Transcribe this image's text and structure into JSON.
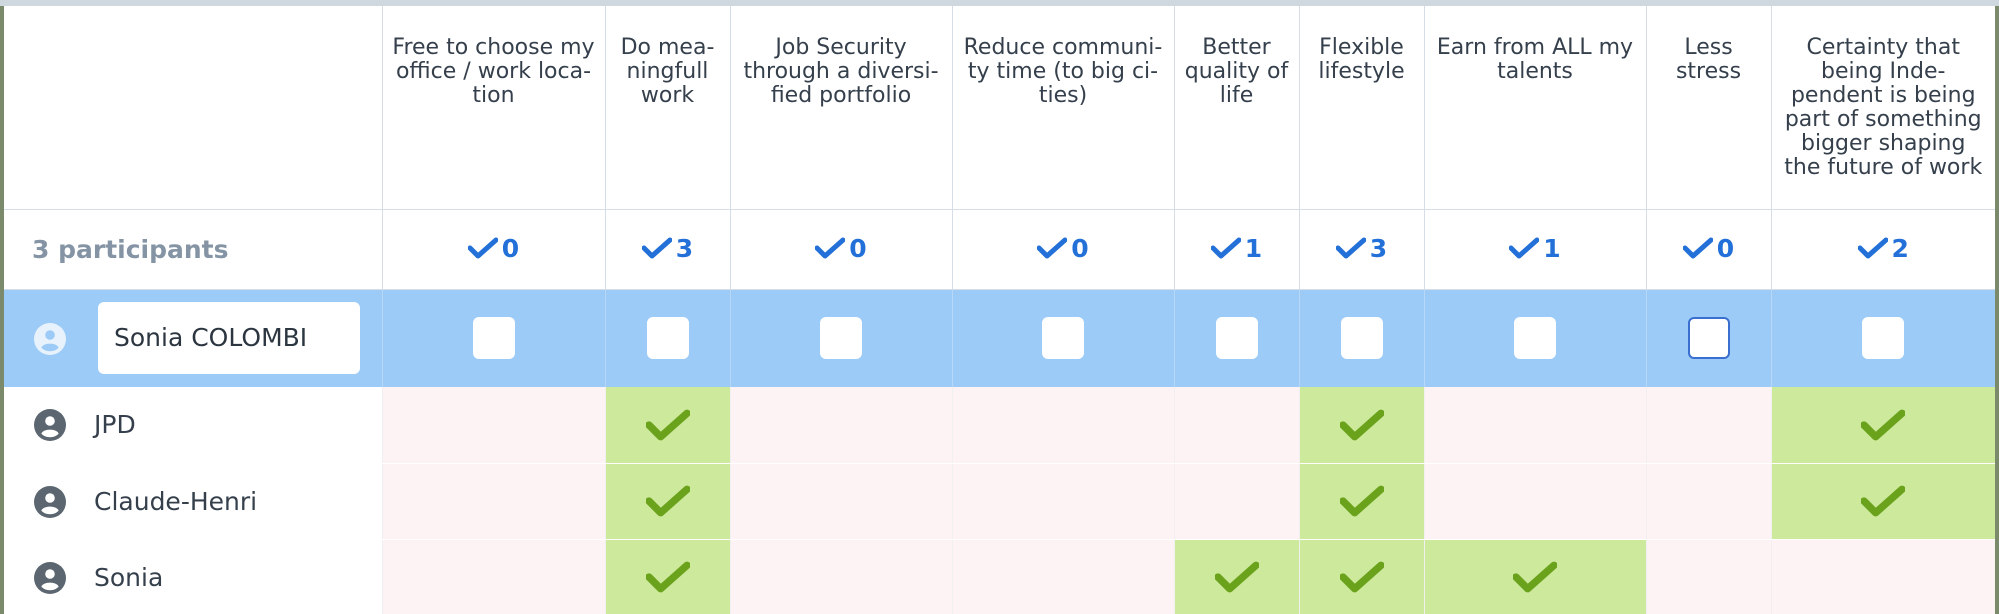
{
  "columns": [
    {
      "label": "Free to choose my office / work loca-tion",
      "count": "0"
    },
    {
      "label": "Do mea-ningfull work",
      "count": "3"
    },
    {
      "label": "Job Security through a diversi-fied portfolio",
      "count": "0"
    },
    {
      "label": "Reduce communi-ty time (to big ci-ties)",
      "count": "0"
    },
    {
      "label": "Better quality of life",
      "count": "1"
    },
    {
      "label": "Flexible lifestyle",
      "count": "3"
    },
    {
      "label": "Earn from ALL my talents",
      "count": "1"
    },
    {
      "label": "Less stress",
      "count": "0"
    },
    {
      "label": "Certainty that being Inde-pendent is being part of something bigger shaping the future of work",
      "count": "2"
    }
  ],
  "participants_label": "3 participants",
  "edit_row": {
    "name_value": "Sonia COLOMBI",
    "focused_column": 7
  },
  "participants": [
    {
      "name": "JPD",
      "votes": [
        false,
        true,
        false,
        false,
        false,
        true,
        false,
        false,
        true
      ]
    },
    {
      "name": "Claude-Henri",
      "votes": [
        false,
        true,
        false,
        false,
        false,
        true,
        false,
        false,
        true
      ]
    },
    {
      "name": "Sonia",
      "votes": [
        false,
        true,
        false,
        false,
        true,
        true,
        true,
        false,
        false
      ]
    }
  ],
  "colors": {
    "accent": "#2270d8",
    "edit_row": "#9ccbf7",
    "yes": "#cce99c",
    "no": "#fdf3f4",
    "check_green": "#6aa21c"
  }
}
